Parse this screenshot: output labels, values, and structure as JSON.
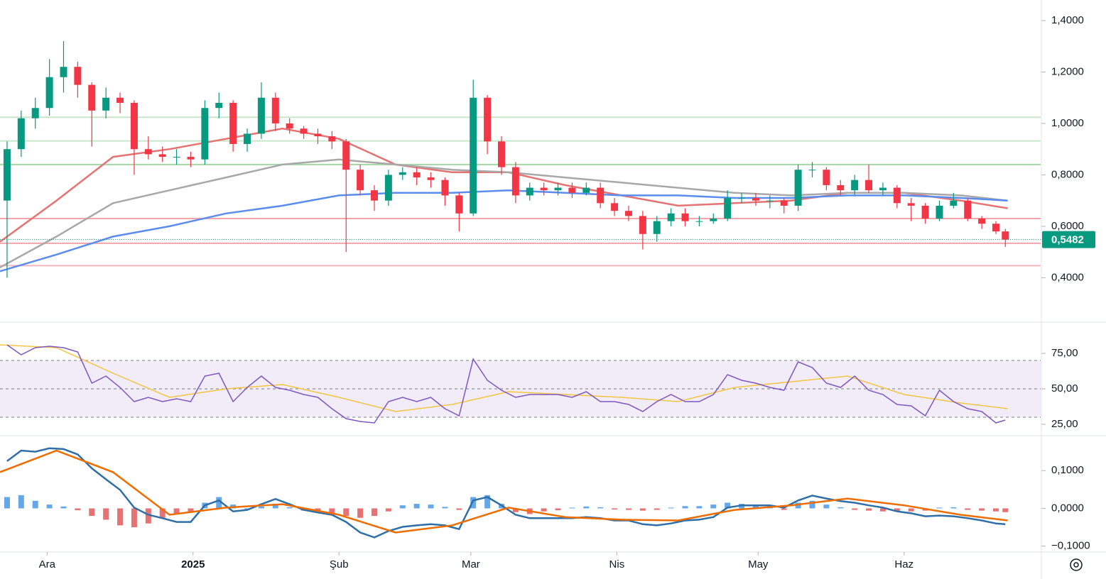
{
  "chart_data": {
    "type": "candlestick",
    "xlim": [
      0,
      221
    ],
    "xticks": [
      {
        "value": 10,
        "label": "Ara"
      },
      {
        "value": 41,
        "label": "2025"
      },
      {
        "value": 72,
        "label": "Şub"
      },
      {
        "value": 100,
        "label": "Mar"
      },
      {
        "value": 131,
        "label": "Nis"
      },
      {
        "value": 161,
        "label": "May"
      },
      {
        "value": 192,
        "label": "Haz"
      }
    ],
    "x": [
      1.5,
      4.5,
      7.5,
      10.5,
      13.5,
      16.5,
      19.5,
      22.5,
      25.5,
      28.5,
      31.5,
      34.5,
      37.5,
      40.5,
      43.5,
      46.5,
      49.5,
      52.5,
      55.5,
      58.5,
      61.5,
      64.5,
      67.5,
      70.5,
      73.5,
      76.5,
      79.5,
      82.5,
      85.5,
      88.5,
      91.5,
      94.5,
      97.5,
      100.5,
      103.5,
      106.5,
      109.5,
      112.5,
      115.5,
      118.5,
      121.5,
      124.5,
      127.5,
      130.5,
      133.5,
      136.5,
      139.5,
      142.5,
      145.5,
      148.5,
      151.5,
      154.5,
      157.5,
      160.5,
      163.5,
      166.5,
      169.5,
      172.5,
      175.5,
      178.5,
      181.5,
      184.5,
      187.5,
      190.5,
      193.5,
      196.5,
      199.5,
      202.5,
      205.5,
      208.5,
      211.5,
      213.5
    ],
    "open": [
      0.7,
      0.9,
      1.02,
      1.06,
      1.18,
      1.22,
      1.15,
      1.05,
      1.1,
      1.08,
      0.9,
      0.88,
      0.87,
      0.87,
      0.86,
      1.06,
      1.08,
      0.92,
      0.96,
      1.1,
      1.0,
      0.98,
      0.96,
      0.95,
      0.93,
      0.82,
      0.74,
      0.7,
      0.8,
      0.81,
      0.79,
      0.78,
      0.72,
      0.65,
      1.1,
      0.93,
      0.83,
      0.72,
      0.75,
      0.74,
      0.75,
      0.73,
      0.75,
      0.69,
      0.66,
      0.64,
      0.57,
      0.62,
      0.65,
      0.62,
      0.62,
      0.63,
      0.71,
      0.71,
      0.7,
      0.7,
      0.68,
      0.82,
      0.82,
      0.76,
      0.74,
      0.78,
      0.74,
      0.75,
      0.69,
      0.68,
      0.63,
      0.68,
      0.7,
      0.63,
      0.61,
      0.58
    ],
    "high": [
      0.93,
      1.05,
      1.1,
      1.25,
      1.32,
      1.24,
      1.16,
      1.14,
      1.12,
      1.09,
      0.95,
      0.91,
      0.9,
      0.89,
      1.09,
      1.12,
      1.09,
      0.98,
      1.16,
      1.12,
      1.02,
      0.99,
      0.98,
      0.97,
      0.94,
      0.84,
      0.76,
      0.82,
      0.83,
      0.83,
      0.81,
      0.79,
      0.73,
      1.17,
      1.11,
      0.95,
      0.85,
      0.77,
      0.77,
      0.77,
      0.77,
      0.77,
      0.77,
      0.71,
      0.68,
      0.66,
      0.64,
      0.67,
      0.67,
      0.64,
      0.65,
      0.74,
      0.73,
      0.73,
      0.72,
      0.71,
      0.84,
      0.85,
      0.83,
      0.78,
      0.8,
      0.84,
      0.77,
      0.76,
      0.71,
      0.69,
      0.7,
      0.73,
      0.71,
      0.64,
      0.62,
      0.59
    ],
    "low": [
      0.4,
      0.87,
      0.98,
      1.03,
      1.12,
      1.1,
      0.91,
      1.02,
      1.04,
      0.8,
      0.86,
      0.85,
      0.84,
      0.83,
      0.84,
      1.02,
      0.89,
      0.89,
      0.94,
      0.97,
      0.96,
      0.94,
      0.92,
      0.9,
      0.5,
      0.72,
      0.66,
      0.68,
      0.78,
      0.76,
      0.75,
      0.68,
      0.58,
      0.64,
      0.88,
      0.8,
      0.69,
      0.7,
      0.72,
      0.72,
      0.71,
      0.72,
      0.67,
      0.64,
      0.62,
      0.51,
      0.54,
      0.6,
      0.6,
      0.6,
      0.61,
      0.62,
      0.69,
      0.68,
      0.67,
      0.65,
      0.66,
      0.79,
      0.74,
      0.72,
      0.72,
      0.73,
      0.72,
      0.67,
      0.62,
      0.61,
      0.62,
      0.67,
      0.62,
      0.59,
      0.57,
      0.52
    ],
    "close": [
      0.9,
      1.02,
      1.06,
      1.18,
      1.22,
      1.15,
      1.05,
      1.1,
      1.08,
      0.9,
      0.88,
      0.87,
      0.87,
      0.86,
      1.06,
      1.08,
      0.92,
      0.96,
      1.1,
      1.0,
      0.98,
      0.96,
      0.95,
      0.93,
      0.82,
      0.74,
      0.7,
      0.8,
      0.81,
      0.79,
      0.78,
      0.72,
      0.65,
      1.1,
      0.93,
      0.83,
      0.72,
      0.75,
      0.74,
      0.75,
      0.73,
      0.75,
      0.69,
      0.66,
      0.64,
      0.57,
      0.62,
      0.65,
      0.62,
      0.62,
      0.63,
      0.71,
      0.71,
      0.7,
      0.7,
      0.68,
      0.82,
      0.82,
      0.76,
      0.74,
      0.78,
      0.74,
      0.75,
      0.69,
      0.68,
      0.63,
      0.68,
      0.7,
      0.63,
      0.61,
      0.58,
      0.5482
    ],
    "up_color": "#089981",
    "down_color": "#f23645",
    "ylim": [
      0.23,
      1.48
    ],
    "yticks": [
      {
        "value": 1.4,
        "label": "1,4000"
      },
      {
        "value": 1.2,
        "label": "1,2000"
      },
      {
        "value": 1.0,
        "label": "1,0000"
      },
      {
        "value": 0.8,
        "label": "0,8000"
      },
      {
        "value": 0.6,
        "label": "0,6000"
      },
      {
        "value": 0.4,
        "label": "0,4000"
      }
    ],
    "smooth_x": [
      0,
      12,
      24,
      36,
      48,
      60,
      72,
      84,
      96,
      108,
      120,
      132,
      144,
      156,
      168,
      180,
      192,
      204,
      214
    ],
    "moving_averages": [
      {
        "color": "#e57373",
        "values": [
          0.54,
          0.7,
          0.87,
          0.9,
          0.94,
          0.98,
          0.94,
          0.84,
          0.81,
          0.81,
          0.76,
          0.72,
          0.68,
          0.69,
          0.7,
          0.73,
          0.73,
          0.7,
          0.67
        ]
      },
      {
        "color": "#a8a8a8",
        "values": [
          0.44,
          0.56,
          0.69,
          0.74,
          0.79,
          0.84,
          0.86,
          0.84,
          0.82,
          0.81,
          0.79,
          0.77,
          0.75,
          0.73,
          0.72,
          0.73,
          0.73,
          0.72,
          0.7
        ]
      },
      {
        "color": "#5b8def",
        "values": [
          0.425,
          0.49,
          0.56,
          0.6,
          0.65,
          0.68,
          0.72,
          0.73,
          0.73,
          0.74,
          0.73,
          0.72,
          0.72,
          0.71,
          0.71,
          0.72,
          0.72,
          0.71,
          0.7
        ]
      }
    ],
    "levels": [
      {
        "value": 1.024,
        "color": "#c8e6c9"
      },
      {
        "value": 0.932,
        "color": "#c8e6c9"
      },
      {
        "value": 0.84,
        "color": "#a5d6a7"
      },
      {
        "value": 0.63,
        "color": "#f4a6ac"
      },
      {
        "value": 0.534,
        "color": "#f4a6ac"
      },
      {
        "value": 0.447,
        "color": "#f4b6bb"
      }
    ],
    "last_price": {
      "value": 0.5482,
      "label": "0,5482",
      "color": "#089981"
    },
    "rsi": {
      "type": "line",
      "ylim": [
        18,
        96.5
      ],
      "yticks": [
        {
          "value": 75,
          "label": "75,00"
        },
        {
          "value": 50,
          "label": "50,00"
        },
        {
          "value": 25,
          "label": "25,00"
        }
      ],
      "levels": [
        70,
        50,
        30
      ],
      "band_color": "#ede7f6",
      "color": "#7e57c2",
      "values": [
        81,
        74,
        79,
        80,
        79,
        76,
        54,
        59,
        51,
        41,
        44,
        41,
        43,
        41,
        59,
        61,
        41,
        51,
        59,
        51,
        49,
        46,
        44,
        36,
        29,
        27,
        26,
        41,
        44,
        41,
        44,
        36,
        31,
        71,
        56,
        49,
        44,
        46,
        46,
        46,
        44,
        48,
        41,
        41,
        39,
        34,
        41,
        46,
        41,
        41,
        46,
        60,
        56,
        54,
        51,
        49,
        69,
        65,
        54,
        51,
        59,
        49,
        46,
        39,
        38,
        31,
        49,
        41,
        36,
        34,
        26,
        28
      ],
      "ma_color": "#f5c542",
      "ma_values": [
        81,
        79,
        61,
        44,
        50,
        53,
        44,
        34,
        39,
        48,
        46,
        44,
        41,
        51,
        55,
        59,
        46,
        40,
        36
      ]
    },
    "macd": {
      "type": "line",
      "ylim": [
        -0.11,
        0.185
      ],
      "yticks": [
        {
          "value": 0.1,
          "label": "0,1000"
        },
        {
          "value": 0,
          "label": "0,0000"
        },
        {
          "value": -0.1,
          "label": "−0,1000"
        }
      ],
      "color": "#2f6fa8",
      "values": [
        0.125,
        0.153,
        0.15,
        0.159,
        0.157,
        0.143,
        0.106,
        0.077,
        0.049,
        0.002,
        -0.017,
        -0.026,
        -0.036,
        -0.036,
        0.008,
        0.021,
        -0.008,
        -0.004,
        0.011,
        0.025,
        0.011,
        -0.004,
        -0.011,
        -0.017,
        -0.036,
        -0.064,
        -0.077,
        -0.06,
        -0.049,
        -0.045,
        -0.042,
        -0.045,
        -0.055,
        0.021,
        0.03,
        0.008,
        -0.017,
        -0.026,
        -0.026,
        -0.026,
        -0.026,
        -0.023,
        -0.026,
        -0.032,
        -0.032,
        -0.042,
        -0.045,
        -0.04,
        -0.032,
        -0.03,
        -0.023,
        0.002,
        0.008,
        0.008,
        0.008,
        0.002,
        0.021,
        0.034,
        0.026,
        0.019,
        0.015,
        0.008,
        0.002,
        -0.008,
        -0.013,
        -0.021,
        -0.019,
        -0.021,
        -0.026,
        -0.032,
        -0.04,
        -0.042
      ],
      "signal_color": "#ef6c00",
      "signal_values": [
        0.096,
        0.153,
        0.096,
        -0.017,
        0.002,
        0.011,
        -0.017,
        -0.064,
        -0.045,
        0.002,
        -0.023,
        -0.03,
        -0.032,
        -0.004,
        0.008,
        0.026,
        0.008,
        -0.017,
        -0.032
      ],
      "hist_up_color": "#64a8ea",
      "hist_down_color": "#e57373",
      "histogram": [
        0.03,
        0.035,
        0.02,
        0.01,
        0.005,
        -0.005,
        -0.02,
        -0.03,
        -0.045,
        -0.05,
        -0.04,
        -0.025,
        -0.015,
        -0.01,
        0.015,
        0.03,
        0.01,
        0.0,
        0.005,
        0.012,
        0.003,
        -0.006,
        -0.008,
        -0.012,
        -0.02,
        -0.025,
        -0.02,
        -0.008,
        0.008,
        0.012,
        0.01,
        0.004,
        -0.004,
        0.03,
        0.035,
        0.012,
        -0.01,
        -0.015,
        -0.008,
        -0.005,
        0.002,
        0.005,
        0.003,
        -0.003,
        -0.004,
        -0.006,
        -0.004,
        0.002,
        0.006,
        0.006,
        0.01,
        0.015,
        0.012,
        0.008,
        0.004,
        -0.004,
        0.015,
        0.02,
        0.01,
        0.003,
        -0.004,
        -0.006,
        -0.008,
        -0.008,
        -0.008,
        -0.006,
        0.002,
        0.003,
        -0.004,
        -0.006,
        -0.008,
        -0.01
      ]
    }
  }
}
